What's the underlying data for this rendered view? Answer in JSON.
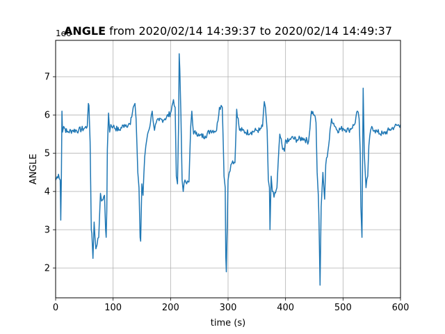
{
  "chart_data": {
    "type": "line",
    "title_bold": "ANGLE",
    "title_rest": " from 2020/02/14 14:39:37 to 2020/02/14 14:49:37",
    "xlabel": "time (s)",
    "ylabel": "ANGLE",
    "y_offset_label": "1e6",
    "xlim": [
      0,
      600
    ],
    "ylim": [
      1.22,
      7.95
    ],
    "x_ticks": [
      0,
      100,
      200,
      300,
      400,
      500,
      600
    ],
    "x_tick_labels": [
      "0",
      "100",
      "200",
      "300",
      "400",
      "500",
      "600"
    ],
    "y_ticks": [
      2,
      3,
      4,
      5,
      6,
      7
    ],
    "y_tick_labels": [
      "2",
      "3",
      "4",
      "5",
      "6",
      "7"
    ],
    "grid": true,
    "series": [
      {
        "color": "#1f77b4",
        "x": [
          0,
          5,
          8,
          9,
          10,
          11,
          12,
          14,
          20,
          30,
          40,
          50,
          55,
          57,
          58,
          60,
          62,
          63,
          65,
          67,
          70,
          72,
          75,
          77,
          78,
          80,
          85,
          87,
          88,
          89,
          90,
          92,
          94,
          96,
          100,
          110,
          120,
          130,
          135,
          138,
          140,
          143,
          145,
          147,
          148,
          150,
          152,
          155,
          157,
          160,
          165,
          168,
          172,
          175,
          180,
          190,
          200,
          205,
          208,
          210,
          212,
          214,
          215,
          216,
          218,
          220,
          222,
          225,
          228,
          232,
          235,
          237,
          240,
          245,
          250,
          260,
          270,
          280,
          285,
          288,
          290,
          293,
          295,
          296,
          297,
          299,
          300,
          302,
          305,
          308,
          312,
          315,
          320,
          325,
          330,
          340,
          350,
          355,
          360,
          363,
          365,
          368,
          370,
          372,
          373,
          375,
          377,
          380,
          385,
          390,
          395,
          398,
          400,
          405,
          410,
          420,
          430,
          440,
          445,
          450,
          453,
          455,
          457,
          458,
          460,
          462,
          465,
          468,
          470,
          475,
          480,
          490,
          500,
          510,
          520,
          525,
          528,
          530,
          531,
          533,
          535,
          537,
          540,
          543,
          545,
          548,
          550,
          555,
          560,
          570,
          580,
          590,
          600
        ],
        "y": [
          4.3,
          4.45,
          4.3,
          3.25,
          4.4,
          6.1,
          5.55,
          5.7,
          5.55,
          5.6,
          5.6,
          5.65,
          5.7,
          6.3,
          6.25,
          5.3,
          3.0,
          2.9,
          2.25,
          3.2,
          2.5,
          2.6,
          2.8,
          3.6,
          3.95,
          3.75,
          3.9,
          3.0,
          2.8,
          3.5,
          5.1,
          6.05,
          5.55,
          5.75,
          5.7,
          5.6,
          5.75,
          5.75,
          6.2,
          6.3,
          5.9,
          4.5,
          4.1,
          2.8,
          2.7,
          4.2,
          3.9,
          4.9,
          5.2,
          5.5,
          5.8,
          6.1,
          5.6,
          5.8,
          5.85,
          5.9,
          6.05,
          6.4,
          6.2,
          4.4,
          4.2,
          5.8,
          7.6,
          7.2,
          6.0,
          4.3,
          4.0,
          4.3,
          4.2,
          4.25,
          5.7,
          6.1,
          5.5,
          5.55,
          5.45,
          5.45,
          5.6,
          5.6,
          6.2,
          6.25,
          6.2,
          4.4,
          4.1,
          2.3,
          1.9,
          3.5,
          4.3,
          4.5,
          4.7,
          4.8,
          4.75,
          6.15,
          5.6,
          5.6,
          5.55,
          5.55,
          5.6,
          5.6,
          5.7,
          6.35,
          6.2,
          5.6,
          4.3,
          4.1,
          3.0,
          4.4,
          4.0,
          3.85,
          4.1,
          5.5,
          5.1,
          5.05,
          5.35,
          5.3,
          5.4,
          5.35,
          5.4,
          5.3,
          6.1,
          6.0,
          5.8,
          4.5,
          3.9,
          3.4,
          1.55,
          3.6,
          4.5,
          3.8,
          4.7,
          5.2,
          5.9,
          5.6,
          5.65,
          5.6,
          5.75,
          6.1,
          5.9,
          5.0,
          3.6,
          2.8,
          6.7,
          5.0,
          4.1,
          4.4,
          5.2,
          5.6,
          5.7,
          5.6,
          5.55,
          5.5,
          5.6,
          5.7,
          5.75
        ]
      }
    ]
  }
}
